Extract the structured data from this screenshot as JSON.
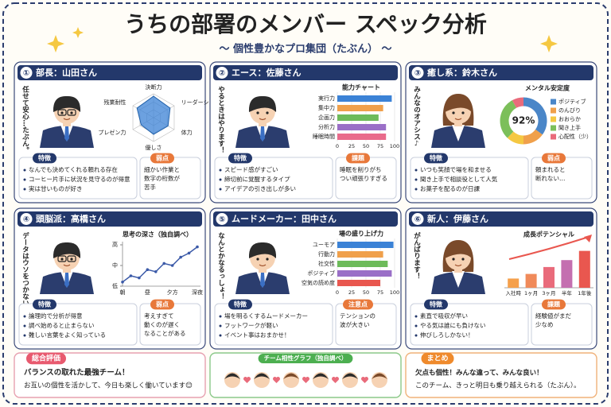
{
  "header": {
    "title": "うちの部署のメンバー スペック分析",
    "subtitle": "～ 個性豊かなプロ集団（たぶん） ～"
  },
  "cards": [
    {
      "badge": "①",
      "name": "部長：山田さん",
      "quote": "任せて安心…たぶん。",
      "chart": {
        "type": "radar",
        "axes": [
          "決断力",
          "リーダーシップ",
          "体力",
          "優しさ",
          "プレゼン力",
          "残業耐性"
        ],
        "values": [
          4.5,
          4,
          3.5,
          3.5,
          3,
          4
        ],
        "rlim": [
          0,
          5
        ],
        "color": "#3b82d6"
      },
      "features": {
        "heading": "特徴",
        "items": [
          "なんでも決めてくれる頼れる存在",
          "コーヒー片手に状況を見守るのが得意",
          "実は甘いものが好き"
        ]
      },
      "weak": {
        "heading": "弱点",
        "items": [
          "細かい作業と",
          "数字の桁数が",
          "苦手"
        ]
      }
    },
    {
      "badge": "②",
      "name": "エース：佐藤さん",
      "quote": "やるときはやります！",
      "chart": {
        "type": "hbar",
        "title": "能力チャート",
        "categories": [
          "実行力",
          "集中力",
          "企画力",
          "分析力",
          "睡眠時間"
        ],
        "values": [
          95,
          80,
          72,
          85,
          85
        ],
        "colors": [
          "#3b82d6",
          "#f0a04b",
          "#6dbb5a",
          "#9a6fc7",
          "#e96b8b"
        ],
        "xlim": [
          0,
          100
        ],
        "xticks": [
          0,
          25,
          50,
          75,
          100
        ]
      },
      "features": {
        "heading": "特徴",
        "items": [
          "スピード感がすごい",
          "締切前に覚醒するタイプ",
          "アイデアの引き出しが多い"
        ]
      },
      "weak": {
        "heading": "課題",
        "items": [
          "睡眠を削りがち",
          "つい頑張りすぎる"
        ]
      }
    },
    {
      "badge": "③",
      "name": "癒し系：鈴木さん",
      "quote": "みんなのオアシス♪",
      "chart": {
        "type": "donut",
        "title": "メンタル安定度",
        "categories": [
          "ポジティブ",
          "のんびり",
          "おおらか",
          "聞き上手",
          "心配性（少）"
        ],
        "values": [
          35,
          15,
          12,
          30,
          8
        ],
        "colors": [
          "#4a86c8",
          "#f0a04b",
          "#f5c842",
          "#7cbf5a",
          "#e96b7b"
        ],
        "center": {
          "value": 92,
          "label": "92%"
        }
      },
      "features": {
        "heading": "特徴",
        "items": [
          "いつも笑顔で場を和ませる",
          "聞き上手で相談役として人気",
          "お菓子を配るのが日課"
        ]
      },
      "weak": {
        "heading": "弱点",
        "items": [
          "頼まれると",
          "断れない…"
        ]
      }
    },
    {
      "badge": "④",
      "name": "頭脳派：高橋さん",
      "quote": "データはウソをつかない。",
      "chart": {
        "type": "line",
        "title": "思考の深さ（独自調べ）",
        "categories": [
          "朝",
          null,
          null,
          "昼",
          null,
          null,
          "夕方",
          null,
          null,
          "深夜"
        ],
        "values": [
          1,
          2.5,
          2,
          4,
          3.5,
          5.5,
          5,
          7,
          8,
          9.5
        ],
        "color": "#3b5aa8",
        "ylim": [
          0,
          10
        ],
        "yticks": [
          {
            "value": 0,
            "label": "低"
          },
          {
            "value": 5,
            "label": "中"
          },
          {
            "value": 10,
            "label": "高"
          }
        ]
      },
      "features": {
        "heading": "特徴",
        "items": [
          "論理的で分析が得意",
          "調べ始めると止まらない",
          "難しい言葉をよく知っている"
        ]
      },
      "weak": {
        "heading": "弱点",
        "items": [
          "考えすぎて",
          "動くのが遅く",
          "なることがある"
        ]
      }
    },
    {
      "badge": "⑤",
      "name": "ムードメーカー：田中さん",
      "quote": "なんとかなるっしょ！",
      "chart": {
        "type": "hbar",
        "title": "場の盛り上げ力",
        "categories": [
          "ユーモア",
          "行動力",
          "社交性",
          "ポジティブ",
          "空気の読め度"
        ],
        "values": [
          98,
          80,
          88,
          95,
          75
        ],
        "colors": [
          "#3b82d6",
          "#f0a04b",
          "#6dbb5a",
          "#9a6fc7",
          "#e9574f"
        ],
        "xlim": [
          0,
          100
        ],
        "xticks": [
          0,
          25,
          50,
          75,
          100
        ]
      },
      "features": {
        "heading": "特徴",
        "items": [
          "場を明るくするムードメーカー",
          "フットワークが軽い",
          "イベント事はおまかせ！"
        ]
      },
      "weak": {
        "heading": "注意点",
        "items": [
          "テンションの",
          "波が大きい"
        ]
      }
    },
    {
      "badge": "⑥",
      "name": "新人：伊藤さん",
      "quote": "がんばります！",
      "chart": {
        "type": "vbar",
        "title": "成長ポテンシャル",
        "categories": [
          "入社時",
          "1ヶ月",
          "3ヶ月",
          "半年",
          "1年後"
        ],
        "values": [
          20,
          30,
          45,
          60,
          80
        ],
        "colors": [
          "#f5a04b",
          "#f08a5a",
          "#e96b7b",
          "#c46fb0",
          "#e9574f"
        ],
        "ylim": [
          0,
          100
        ]
      },
      "features": {
        "heading": "特徴",
        "items": [
          "素直で吸収が早い",
          "やる気は誰にも負けない",
          "伸びしろしかない！"
        ]
      },
      "weak": {
        "heading": "課題",
        "items": [
          "経験値がまだ",
          "少なめ"
        ]
      }
    }
  ],
  "summary": {
    "heading": "総合評価",
    "lines": [
      "バランスの取れた最強チーム！",
      "お互いの個性を活かして、今日も楽しく働いています😊"
    ]
  },
  "team": {
    "heading": "チーム相性グラフ（独自調べ）"
  },
  "conclusion": {
    "heading": "まとめ",
    "lines": [
      "欠点も個性！みんな違って、みんな良い！",
      "このチーム、きっと明日も乗り越えられる（たぶん）。"
    ]
  }
}
